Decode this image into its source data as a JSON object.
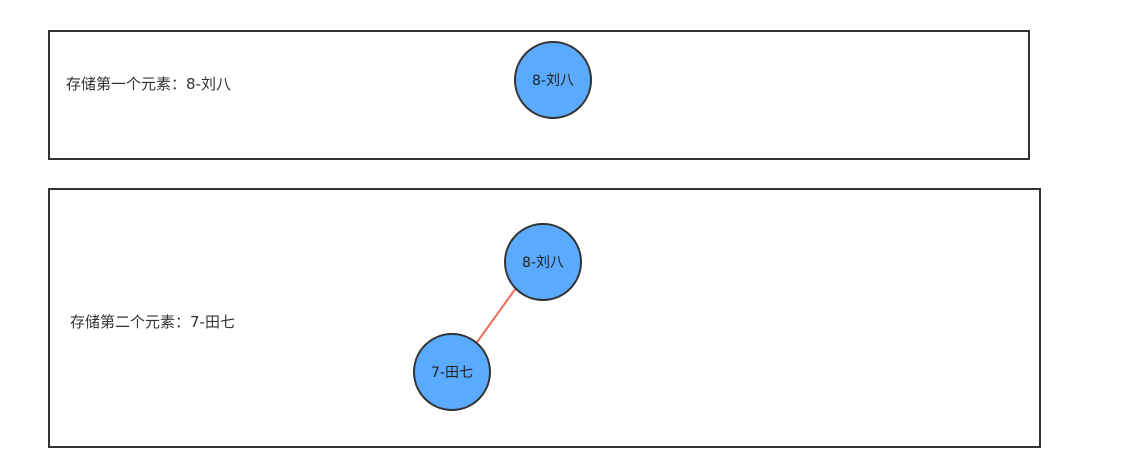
{
  "steps": [
    {
      "caption": "存储第一个元素：8-刘八",
      "nodes": [
        {
          "id": "n8",
          "label": "8-刘八"
        }
      ],
      "edges": []
    },
    {
      "caption": "存储第二个元素：7-田七",
      "nodes": [
        {
          "id": "n8",
          "label": "8-刘八"
        },
        {
          "id": "n7",
          "label": "7-田七"
        }
      ],
      "edges": [
        {
          "from": "n8",
          "to": "n7"
        }
      ]
    }
  ],
  "colors": {
    "node_fill": "#5aabff",
    "node_stroke": "#333333",
    "edge": "#f26b5b",
    "panel_border": "#333333"
  }
}
